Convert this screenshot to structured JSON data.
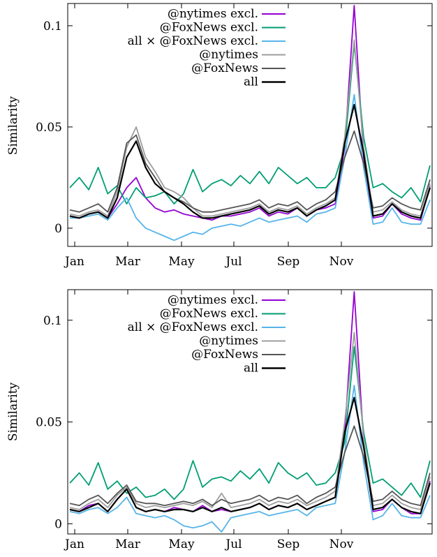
{
  "chart_data": [
    {
      "type": "line",
      "title": "",
      "xlabel": "",
      "ylabel": "Similarity",
      "x_ticks": [
        "Jan",
        "Mar",
        "May",
        "Jul",
        "Sep",
        "Nov"
      ],
      "y_ticks": [
        "0",
        "0.05",
        "0.1"
      ],
      "ylim": [
        -0.009,
        0.111
      ],
      "grid": false,
      "legend_position": "top-right",
      "x": [
        "Jan 1",
        "Jan 20",
        "Feb 1",
        "Feb 15",
        "Feb 25",
        "Mar 5",
        "Mar 12",
        "Mar 19",
        "Mar 26",
        "Apr 5",
        "Apr 15",
        "Apr 25",
        "May 5",
        "May 15",
        "May 25",
        "Jun 5",
        "Jun 15",
        "Jun 25",
        "Jul 5",
        "Jul 15",
        "Jul 25",
        "Aug 5",
        "Aug 15",
        "Aug 25",
        "Sep 5",
        "Sep 15",
        "Sep 25",
        "Oct 5",
        "Oct 15",
        "Oct 22",
        "Oct 25",
        "Oct 28",
        "Nov 5",
        "Nov 15",
        "Nov 25",
        "Dec 5",
        "Dec 15",
        "Dec 25",
        "Dec 31"
      ],
      "series": [
        {
          "name": "@nytimes excl.",
          "color": "#9400d3",
          "values": [
            0.006,
            0.005,
            0.007,
            0.008,
            0.005,
            0.012,
            0.02,
            0.025,
            0.015,
            0.01,
            0.008,
            0.009,
            0.007,
            0.006,
            0.005,
            0.004,
            0.006,
            0.006,
            0.007,
            0.008,
            0.01,
            0.006,
            0.008,
            0.007,
            0.01,
            0.006,
            0.009,
            0.01,
            0.012,
            0.04,
            0.11,
            0.035,
            0.005,
            0.006,
            0.012,
            0.007,
            0.005,
            0.004,
            0.021
          ]
        },
        {
          "name": "@FoxNews excl.",
          "color": "#009e73",
          "values": [
            0.02,
            0.025,
            0.019,
            0.03,
            0.017,
            0.021,
            0.012,
            0.02,
            0.015,
            0.016,
            0.018,
            0.012,
            0.017,
            0.029,
            0.018,
            0.022,
            0.024,
            0.021,
            0.026,
            0.022,
            0.028,
            0.022,
            0.03,
            0.026,
            0.022,
            0.025,
            0.02,
            0.02,
            0.025,
            0.04,
            0.091,
            0.045,
            0.02,
            0.022,
            0.018,
            0.015,
            0.02,
            0.013,
            0.031
          ]
        },
        {
          "name": "all × @FoxNews excl.",
          "color": "#56b4e9",
          "values": [
            0.005,
            0.005,
            0.006,
            0.007,
            0.004,
            0.01,
            0.015,
            0.005,
            0.0,
            -0.002,
            -0.004,
            -0.006,
            -0.004,
            -0.002,
            -0.003,
            0.0,
            0.001,
            0.002,
            0.001,
            0.003,
            0.005,
            0.003,
            0.004,
            0.005,
            0.006,
            0.003,
            0.007,
            0.008,
            0.01,
            0.035,
            0.066,
            0.03,
            0.002,
            0.003,
            0.01,
            0.003,
            0.002,
            0.002,
            0.014
          ]
        },
        {
          "name": "@nytimes",
          "color": "#9e9e9e",
          "values": [
            0.007,
            0.006,
            0.008,
            0.009,
            0.006,
            0.018,
            0.04,
            0.05,
            0.035,
            0.028,
            0.02,
            0.018,
            0.015,
            0.01,
            0.006,
            0.006,
            0.007,
            0.008,
            0.009,
            0.01,
            0.012,
            0.008,
            0.01,
            0.009,
            0.011,
            0.007,
            0.01,
            0.012,
            0.015,
            0.045,
            0.093,
            0.04,
            0.008,
            0.009,
            0.013,
            0.009,
            0.007,
            0.006,
            0.022
          ]
        },
        {
          "name": "@FoxNews",
          "color": "#555555",
          "values": [
            0.009,
            0.008,
            0.01,
            0.012,
            0.008,
            0.02,
            0.042,
            0.046,
            0.032,
            0.025,
            0.018,
            0.015,
            0.013,
            0.01,
            0.008,
            0.008,
            0.009,
            0.01,
            0.011,
            0.012,
            0.014,
            0.01,
            0.012,
            0.011,
            0.013,
            0.009,
            0.012,
            0.014,
            0.018,
            0.035,
            0.048,
            0.032,
            0.01,
            0.011,
            0.015,
            0.012,
            0.01,
            0.009,
            0.024
          ]
        },
        {
          "name": "all",
          "color": "#000000",
          "values": [
            0.006,
            0.005,
            0.007,
            0.008,
            0.005,
            0.015,
            0.035,
            0.043,
            0.03,
            0.022,
            0.018,
            0.015,
            0.012,
            0.008,
            0.005,
            0.005,
            0.006,
            0.007,
            0.008,
            0.009,
            0.011,
            0.007,
            0.009,
            0.008,
            0.01,
            0.006,
            0.009,
            0.011,
            0.014,
            0.042,
            0.061,
            0.037,
            0.006,
            0.007,
            0.012,
            0.008,
            0.006,
            0.005,
            0.02
          ]
        }
      ]
    },
    {
      "type": "line",
      "title": "",
      "xlabel": "",
      "ylabel": "Similarity",
      "x_ticks": [
        "Jan",
        "Mar",
        "May",
        "Jul",
        "Sep",
        "Nov"
      ],
      "y_ticks": [
        "0",
        "0.05",
        "0.1"
      ],
      "ylim": [
        -0.005,
        0.115
      ],
      "grid": false,
      "legend_position": "top-right",
      "x": [
        "Jan 1",
        "Jan 20",
        "Feb 1",
        "Feb 15",
        "Feb 25",
        "Mar 5",
        "Mar 12",
        "Mar 19",
        "Mar 26",
        "Apr 5",
        "Apr 15",
        "Apr 25",
        "May 5",
        "May 15",
        "May 25",
        "Jun 5",
        "Jun 15",
        "Jun 25",
        "Jul 5",
        "Jul 15",
        "Jul 25",
        "Aug 5",
        "Aug 15",
        "Aug 25",
        "Sep 5",
        "Sep 15",
        "Sep 25",
        "Oct 5",
        "Oct 15",
        "Oct 22",
        "Oct 25",
        "Oct 28",
        "Nov 5",
        "Nov 15",
        "Nov 25",
        "Dec 5",
        "Dec 15",
        "Dec 25",
        "Dec 31"
      ],
      "series": [
        {
          "name": "@nytimes excl.",
          "color": "#9400d3",
          "values": [
            0.007,
            0.006,
            0.009,
            0.01,
            0.006,
            0.012,
            0.017,
            0.008,
            0.006,
            0.007,
            0.006,
            0.008,
            0.007,
            0.006,
            0.009,
            0.006,
            0.007,
            0.006,
            0.007,
            0.008,
            0.01,
            0.007,
            0.009,
            0.008,
            0.01,
            0.007,
            0.009,
            0.011,
            0.013,
            0.045,
            0.114,
            0.04,
            0.006,
            0.007,
            0.012,
            0.008,
            0.005,
            0.005,
            0.021
          ]
        },
        {
          "name": "@FoxNews excl.",
          "color": "#009e73",
          "values": [
            0.02,
            0.025,
            0.019,
            0.03,
            0.017,
            0.021,
            0.015,
            0.018,
            0.013,
            0.014,
            0.017,
            0.012,
            0.017,
            0.031,
            0.018,
            0.022,
            0.023,
            0.021,
            0.026,
            0.022,
            0.027,
            0.02,
            0.03,
            0.025,
            0.022,
            0.025,
            0.019,
            0.02,
            0.025,
            0.04,
            0.087,
            0.045,
            0.02,
            0.022,
            0.018,
            0.014,
            0.02,
            0.013,
            0.031
          ]
        },
        {
          "name": "all × @FoxNews excl.",
          "color": "#56b4e9",
          "values": [
            0.006,
            0.005,
            0.007,
            0.008,
            0.005,
            0.008,
            0.013,
            0.005,
            0.004,
            0.003,
            0.004,
            0.002,
            -0.001,
            -0.002,
            -0.001,
            0.001,
            -0.004,
            0.003,
            0.004,
            0.005,
            0.006,
            0.004,
            0.005,
            0.006,
            0.007,
            0.004,
            0.008,
            0.009,
            0.01,
            0.035,
            0.068,
            0.03,
            0.002,
            0.004,
            0.01,
            0.004,
            0.003,
            0.003,
            0.014
          ]
        },
        {
          "name": "@nytimes",
          "color": "#9e9e9e",
          "values": [
            0.008,
            0.007,
            0.01,
            0.012,
            0.008,
            0.014,
            0.018,
            0.01,
            0.008,
            0.009,
            0.008,
            0.009,
            0.01,
            0.009,
            0.011,
            0.008,
            0.015,
            0.008,
            0.009,
            0.01,
            0.012,
            0.009,
            0.011,
            0.01,
            0.012,
            0.009,
            0.011,
            0.013,
            0.016,
            0.05,
            0.094,
            0.042,
            0.009,
            0.01,
            0.014,
            0.01,
            0.008,
            0.007,
            0.023
          ]
        },
        {
          "name": "@FoxNews",
          "color": "#555555",
          "values": [
            0.01,
            0.009,
            0.012,
            0.014,
            0.01,
            0.015,
            0.019,
            0.011,
            0.01,
            0.01,
            0.009,
            0.01,
            0.011,
            0.01,
            0.012,
            0.009,
            0.012,
            0.01,
            0.011,
            0.012,
            0.014,
            0.011,
            0.013,
            0.012,
            0.014,
            0.01,
            0.013,
            0.015,
            0.018,
            0.035,
            0.048,
            0.033,
            0.011,
            0.012,
            0.016,
            0.012,
            0.01,
            0.009,
            0.025
          ]
        },
        {
          "name": "all",
          "color": "#000000",
          "values": [
            0.007,
            0.006,
            0.008,
            0.01,
            0.006,
            0.012,
            0.017,
            0.008,
            0.006,
            0.007,
            0.006,
            0.007,
            0.007,
            0.006,
            0.008,
            0.006,
            0.008,
            0.006,
            0.007,
            0.008,
            0.01,
            0.007,
            0.009,
            0.008,
            0.01,
            0.007,
            0.009,
            0.011,
            0.013,
            0.045,
            0.062,
            0.038,
            0.007,
            0.008,
            0.012,
            0.008,
            0.006,
            0.005,
            0.02
          ]
        }
      ]
    }
  ]
}
